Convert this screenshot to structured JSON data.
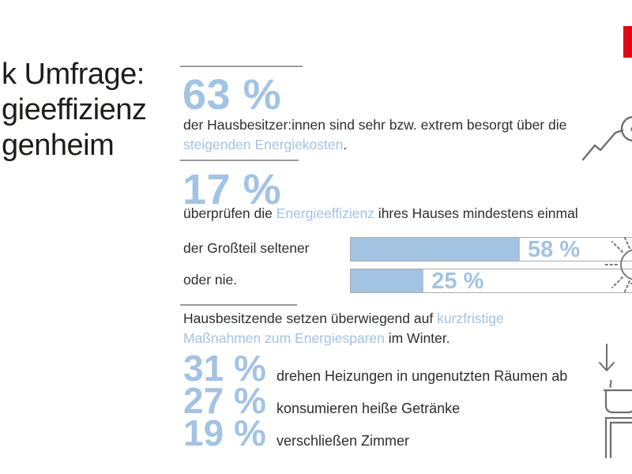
{
  "colors": {
    "accent": "#a3c3e3",
    "text": "#2e2e2e",
    "divider": "#9b9b9b",
    "icon_gray": "#6e6e6e",
    "logo_red": "#e30613",
    "background": "#ffffff"
  },
  "title": {
    "line1": "k Umfrage:",
    "line2": "gieeffizienz",
    "line3": "genheim"
  },
  "stats": {
    "worry": {
      "value": "63 %",
      "p1": "der Hausbesitzer:innen sind sehr bzw. extrem besorgt über die ",
      "p2": "steigenden Energiekosten",
      "p3": "."
    },
    "check": {
      "value": "17 %",
      "p1": "überprüfen die ",
      "p2": "Energieeffizienz",
      "p3": " ihres Hauses mindestens einmal"
    },
    "bars": {
      "rows": [
        {
          "label": "der Großteil seltener",
          "value": 58,
          "value_label": "58 %"
        },
        {
          "label": "oder nie.",
          "value": 25,
          "value_label": "25 %"
        }
      ]
    },
    "winter": {
      "p1": "Hausbesitzende setzen überwiegend auf ",
      "p2": "kurzfristige Maßnahmen zum Energiesparen",
      "p3": " im Winter."
    },
    "measures": [
      {
        "value": "31 %",
        "text": "drehen Heizungen in ungenutzten Räumen ab"
      },
      {
        "value": "27 %",
        "text": "konsumieren heiße Getränke"
      },
      {
        "value": "19 %",
        "text": "verschließen Zimmer"
      }
    ]
  },
  "icons": {
    "euro": "€"
  },
  "chart_data": {
    "type": "bar",
    "orientation": "horizontal",
    "categories": [
      "der Großteil seltener",
      "oder nie."
    ],
    "values": [
      58,
      25
    ],
    "value_labels": [
      "58 %",
      "25 %"
    ],
    "xlim": [
      0,
      100
    ],
    "bar_color": "#a3c3e3",
    "context_stats": [
      {
        "value": 63,
        "label": "63 %",
        "text": "der Hausbesitzer:innen sind sehr bzw. extrem besorgt über die steigenden Energiekosten."
      },
      {
        "value": 17,
        "label": "17 %",
        "text": "überprüfen die Energieeffizienz ihres Hauses mindestens einmal"
      },
      {
        "value": 31,
        "label": "31 %",
        "text": "drehen Heizungen in ungenutzten Räumen ab"
      },
      {
        "value": 27,
        "label": "27 %",
        "text": "konsumieren heiße Getränke"
      },
      {
        "value": 19,
        "label": "19 %",
        "text": "verschließen Zimmer"
      }
    ]
  }
}
